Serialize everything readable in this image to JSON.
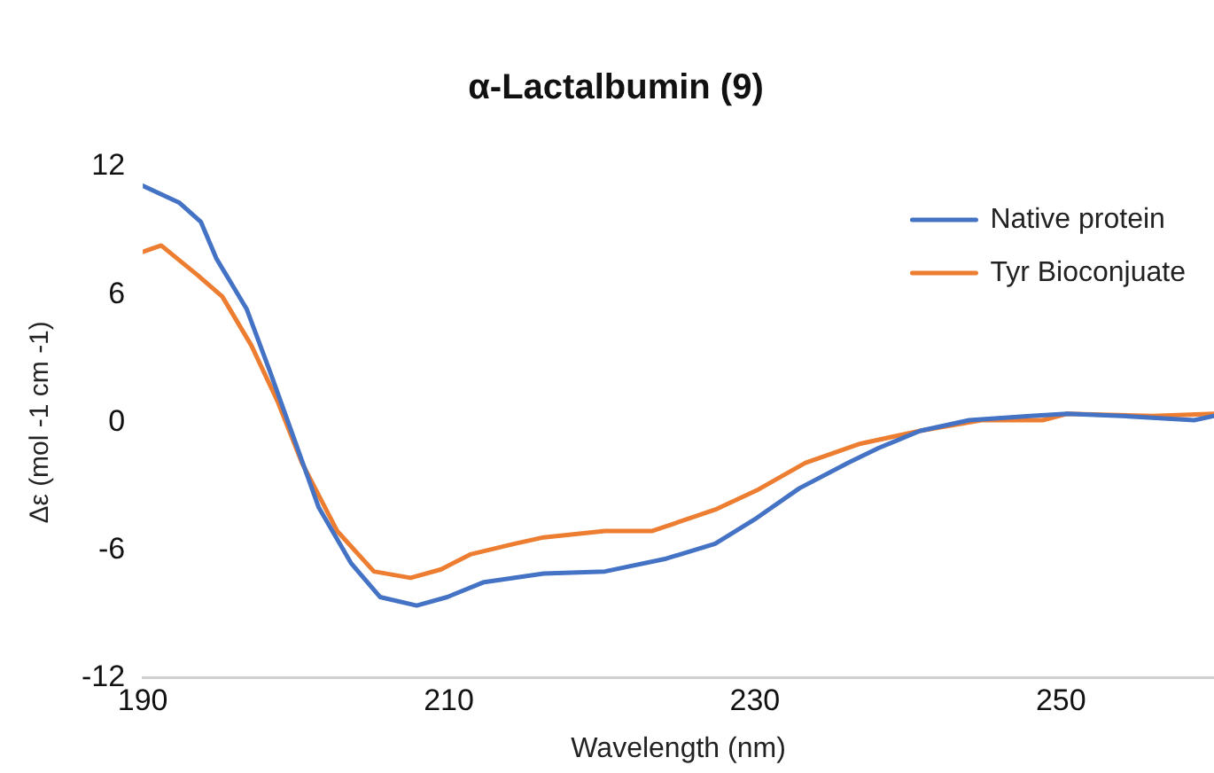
{
  "chart_data": {
    "type": "line",
    "title": "α-Lactalbumin (9)",
    "xlabel": "Wavelength (nm)",
    "ylabel": "Δε (mol -1 cm -1)",
    "xlim": [
      190,
      260
    ],
    "xticks": [
      190,
      210,
      230,
      250
    ],
    "ylim": [
      -12,
      12
    ],
    "yticks": [
      -12,
      -6,
      0,
      6,
      12
    ],
    "grid": false,
    "legend": "top right",
    "marker": "none",
    "line_style": "solid",
    "series": [
      {
        "name": "Native protein",
        "color": "#4472c4",
        "x": [
          190,
          192.4,
          193.8,
          194.8,
          196.8,
          198.3,
          200,
          201.5,
          203.6,
          205.5,
          207.9,
          209.9,
          212.3,
          214.3,
          216.2,
          220.2,
          224.2,
          227.4,
          230.1,
          232.9,
          236.1,
          238.1,
          240.8,
          244,
          248,
          250.4,
          254,
          258.7,
          260
        ],
        "values": [
          11.1,
          10.3,
          9.4,
          7.7,
          5.3,
          2.4,
          -1.0,
          -4.0,
          -6.6,
          -8.2,
          -8.6,
          -8.2,
          -7.5,
          -7.3,
          -7.1,
          -7.0,
          -6.4,
          -5.7,
          -4.5,
          -3.1,
          -1.9,
          -1.2,
          -0.4,
          0.1,
          0.3,
          0.4,
          0.3,
          0.1,
          0.3
        ]
      },
      {
        "name": "Tyr Bioconjuate",
        "color": "#ed7d31",
        "x": [
          190,
          191.2,
          193.6,
          195.2,
          197.1,
          198.8,
          200.4,
          202.7,
          205.1,
          207.5,
          209.5,
          211.4,
          214.3,
          216.2,
          220.2,
          223.3,
          227.4,
          230.1,
          233.3,
          236.9,
          240.8,
          244.8,
          248.8,
          250.4,
          256,
          260
        ],
        "values": [
          8.0,
          8.3,
          6.9,
          5.9,
          3.6,
          1.0,
          -1.9,
          -5.1,
          -7.0,
          -7.3,
          -6.9,
          -6.2,
          -5.7,
          -5.4,
          -5.1,
          -5.1,
          -4.1,
          -3.2,
          -1.9,
          -1.0,
          -0.4,
          0.1,
          0.1,
          0.4,
          0.3,
          0.4
        ]
      }
    ]
  }
}
